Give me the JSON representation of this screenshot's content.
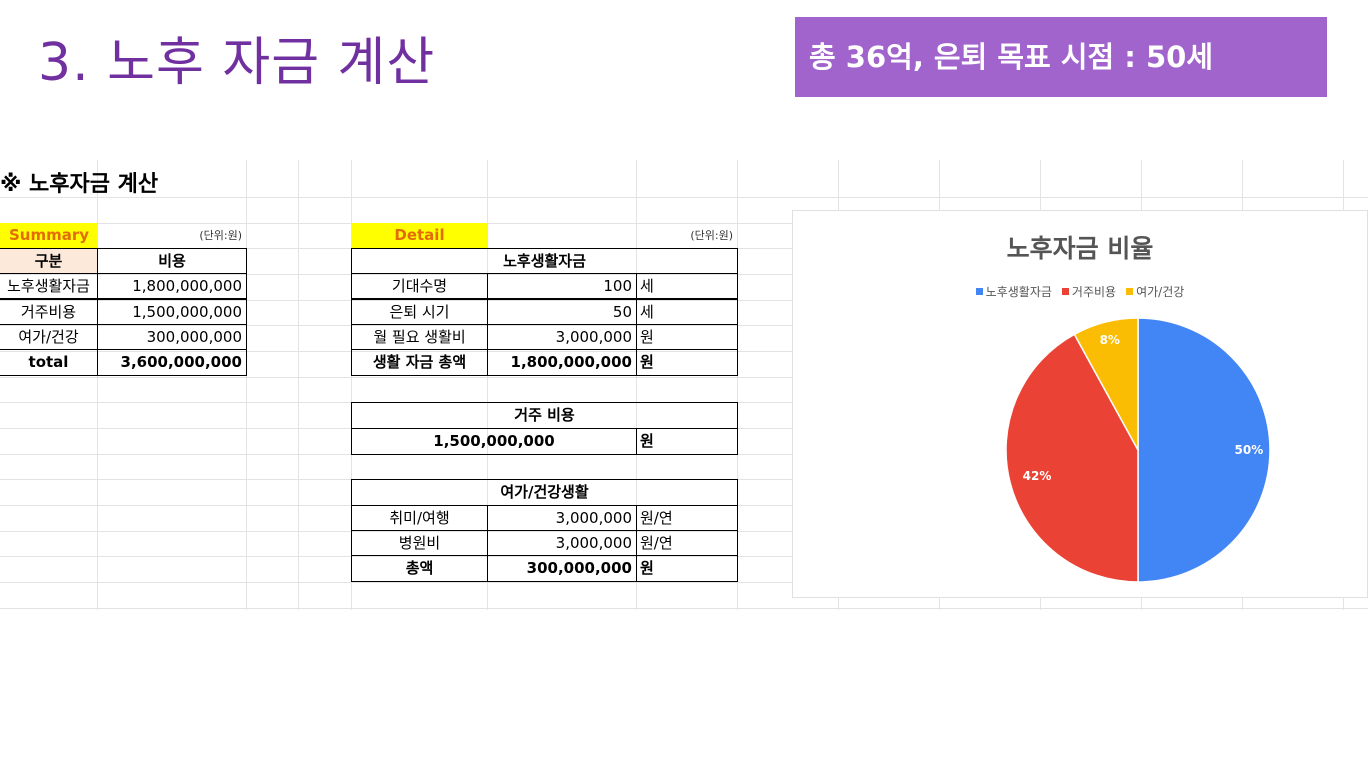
{
  "slide": {
    "title": "3. 노후 자금 계산",
    "banner": "총 36억, 은퇴 목표 시점  : 50세"
  },
  "sheet": {
    "section_title": "※ 노후자금 계산",
    "summary": {
      "label": "Summary",
      "unit": "(단위:원)",
      "headers": [
        "구분",
        "비용"
      ],
      "rows": [
        {
          "name": "노후생활자금",
          "value": "1,800,000,000"
        },
        {
          "name": "거주비용",
          "value": "1,500,000,000"
        },
        {
          "name": "여가/건강",
          "value": "300,000,000"
        }
      ],
      "total_label": "total",
      "total_value": "3,600,000,000"
    },
    "detail": {
      "label": "Detail",
      "unit": "(단위:원)",
      "living": {
        "title": "노후생활자금",
        "rows": [
          {
            "name": "기대수명",
            "value": "100",
            "unit": "세"
          },
          {
            "name": "은퇴 시기",
            "value": "50",
            "unit": "세"
          },
          {
            "name": "월 필요 생활비",
            "value": "3,000,000",
            "unit": "원"
          }
        ],
        "total": {
          "name": "생활 자금 총액",
          "value": "1,800,000,000",
          "unit": "원"
        }
      },
      "housing": {
        "title": "거주 비용",
        "value": "1,500,000,000",
        "unit": "원"
      },
      "leisure": {
        "title": "여가/건강생활",
        "rows": [
          {
            "name": "취미/여행",
            "value": "3,000,000",
            "unit": "원/연"
          },
          {
            "name": "병원비",
            "value": "3,000,000",
            "unit": "원/연"
          }
        ],
        "total": {
          "name": "총액",
          "value": "300,000,000",
          "unit": "원"
        }
      }
    }
  },
  "chart_data": {
    "type": "pie",
    "title": "노후자금 비율",
    "categories": [
      "노후생활자금",
      "거주비용",
      "여가/건강"
    ],
    "values": [
      50,
      42,
      8
    ],
    "labels": [
      "50%",
      "42%",
      "8%"
    ],
    "colors": [
      "#4285f4",
      "#ea4335",
      "#fbbc04"
    ],
    "legend_position": "top"
  }
}
